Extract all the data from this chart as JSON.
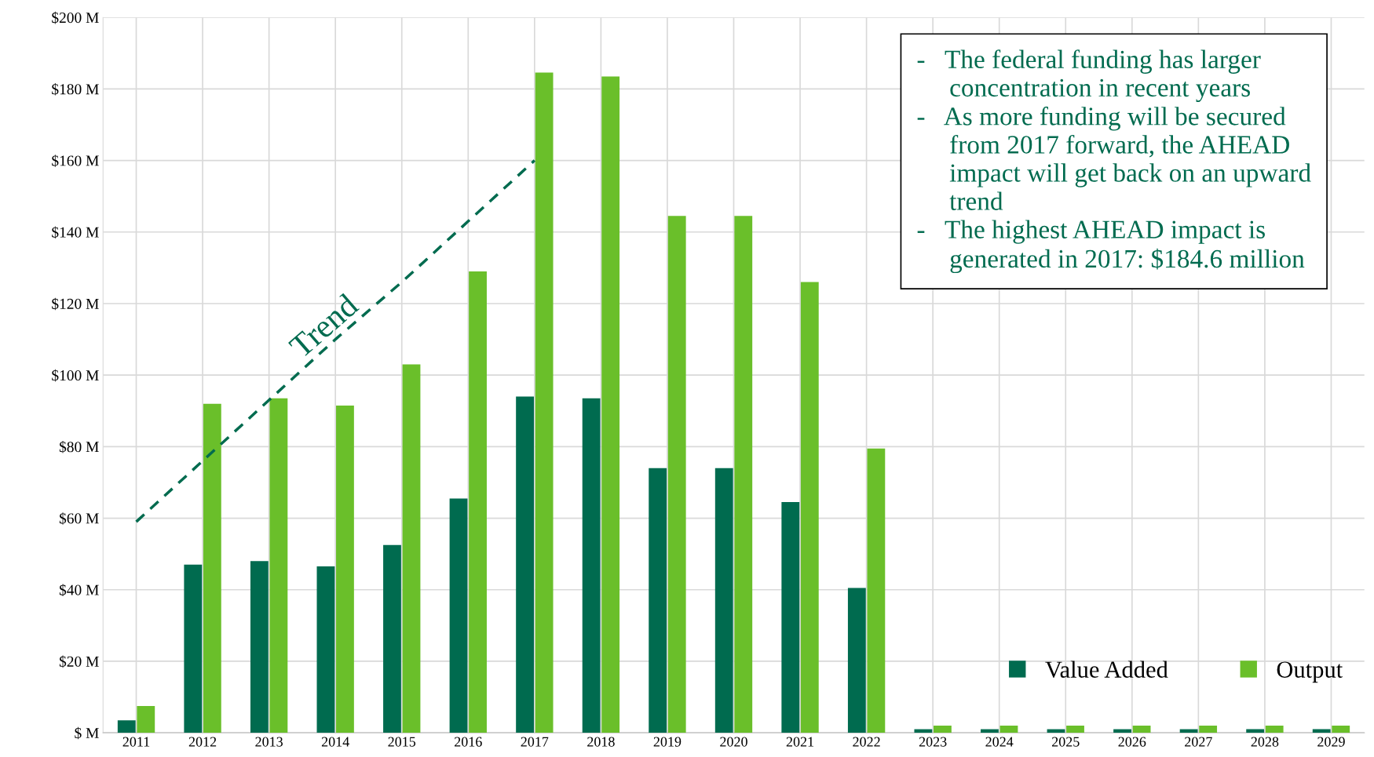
{
  "chart_data": {
    "type": "bar",
    "categories": [
      "2011",
      "2012",
      "2013",
      "2014",
      "2015",
      "2016",
      "2017",
      "2018",
      "2019",
      "2020",
      "2021",
      "2022",
      "2023",
      "2024",
      "2025",
      "2026",
      "2027",
      "2028",
      "2029"
    ],
    "series": [
      {
        "name": "Value Added",
        "color": "#006b4f",
        "values": [
          3.5,
          47,
          48,
          46.5,
          52.5,
          65.5,
          94,
          93.5,
          74,
          74,
          64.5,
          40.5,
          1,
          1,
          1,
          1,
          1,
          1,
          1
        ]
      },
      {
        "name": "Output",
        "color": "#6abf2a",
        "values": [
          7.5,
          92,
          93.5,
          91.5,
          103,
          129,
          184.6,
          183.5,
          144.5,
          144.5,
          126,
          79.5,
          2,
          2,
          2,
          2,
          2,
          2,
          2
        ]
      },
      {
        "type": "line",
        "color": "#006b4f",
        "line_style": "dashed",
        "values": [
          59,
          76,
          93,
          110,
          126,
          143,
          160,
          null,
          null,
          null,
          null,
          null,
          null,
          null,
          null,
          null,
          null,
          null,
          null
        ]
      }
    ],
    "ylim": [
      0,
      200
    ],
    "yticks": [
      {
        "value": 0,
        "label": "$ M"
      },
      {
        "value": 20,
        "label": "$20 M"
      },
      {
        "value": 40,
        "label": "$40 M"
      },
      {
        "value": 60,
        "label": "$60 M"
      },
      {
        "value": 80,
        "label": "$80 M"
      },
      {
        "value": 100,
        "label": "$100 M"
      },
      {
        "value": 120,
        "label": "$120 M"
      },
      {
        "value": 140,
        "label": "$140 M"
      },
      {
        "value": 160,
        "label": "$160 M"
      },
      {
        "value": 180,
        "label": "$180 M"
      },
      {
        "value": 200,
        "label": "$200 M"
      }
    ],
    "grid": true,
    "legend": "bottom right",
    "annotations": [
      {
        "text": "Trend",
        "x": "2014",
        "y": 110
      },
      "-   The federal funding has larger\n     concentration in recent years\n-   As more funding will be secured\n     from 2017 forward, the AHEAD\n     impact will get back on an upward\n     trend\n-   The highest AHEAD impact is\n     generated in 2017: $184.6 million"
    ]
  }
}
